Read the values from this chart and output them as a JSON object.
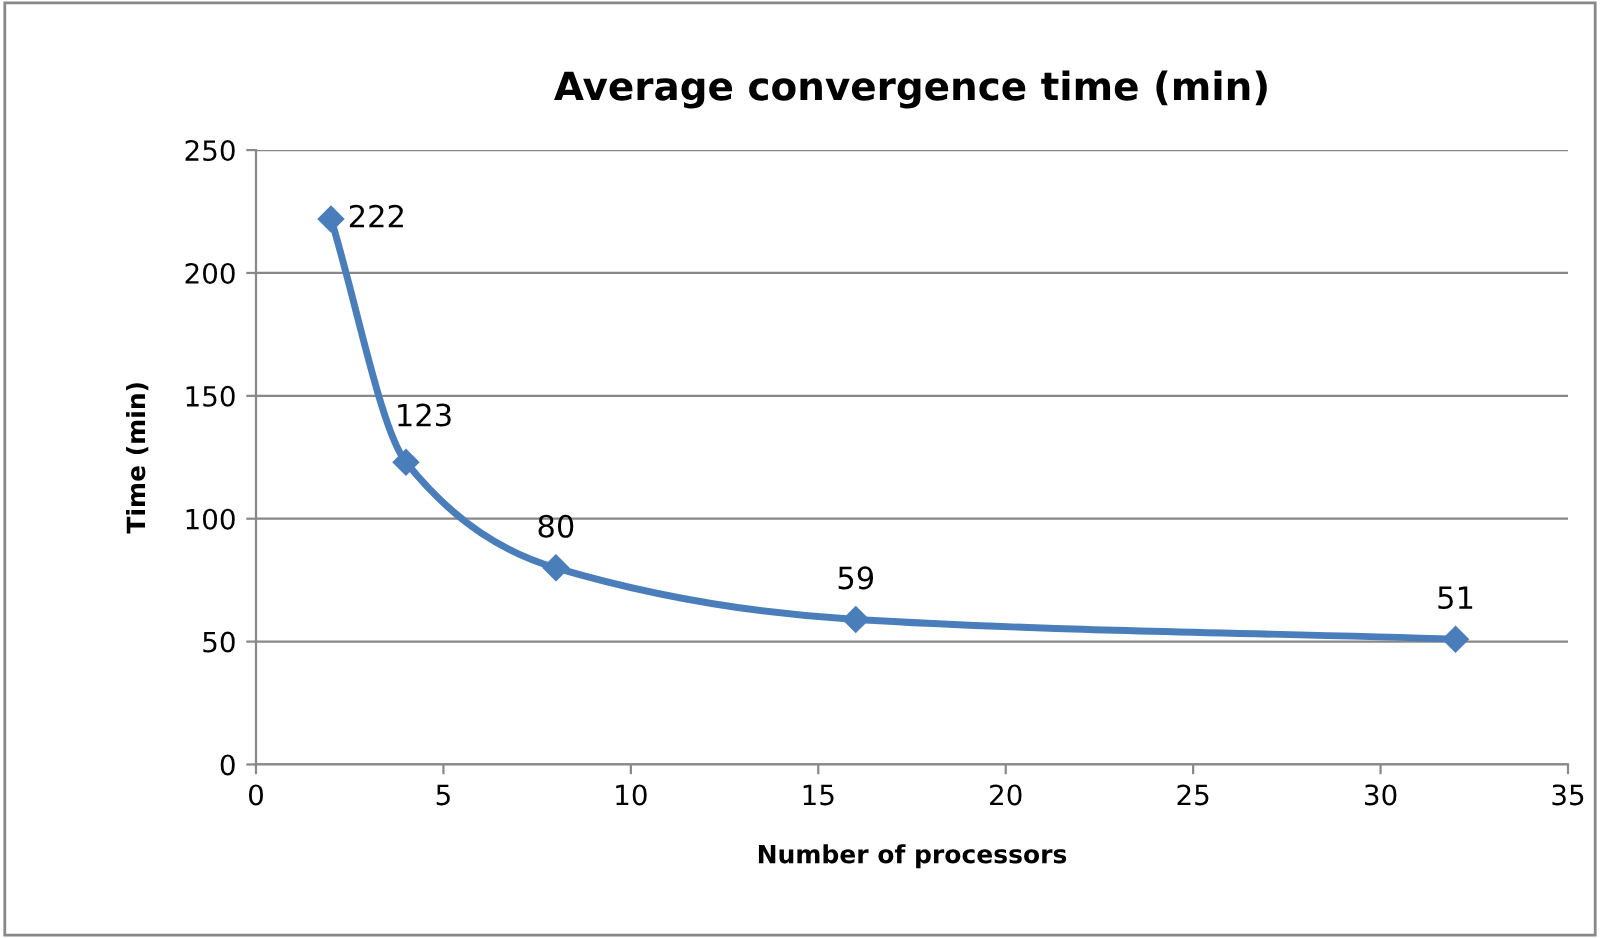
{
  "chart_data": {
    "type": "line",
    "title": "Average convergence time (min)",
    "xlabel": "Number of processors",
    "ylabel": "Time (min)",
    "x": [
      2,
      4,
      8,
      16,
      32
    ],
    "series": [
      {
        "color": "#4a7ebb",
        "values": [
          222,
          123,
          80,
          59,
          51
        ]
      }
    ],
    "xlim": [
      0,
      35
    ],
    "ylim": [
      0,
      250
    ],
    "xticks": [
      0,
      5,
      10,
      15,
      20,
      25,
      30,
      35
    ],
    "yticks": [
      0,
      50,
      100,
      150,
      200,
      250
    ],
    "grid": "y",
    "marker": "diamond",
    "line_style": "solid",
    "data_labels": true,
    "legend": false
  }
}
